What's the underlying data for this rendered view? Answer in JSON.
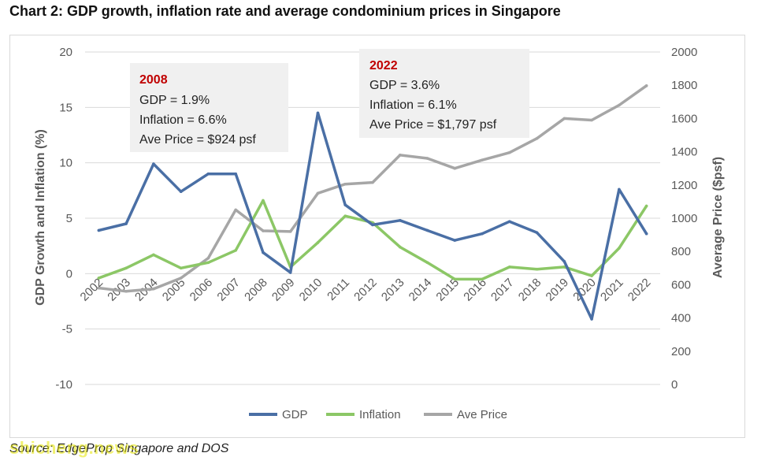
{
  "page": {
    "title": "Chart 2: GDP growth, inflation rate and average condominium prices in Singapore",
    "source": "Source: EdgeProp Singapore and DOS",
    "watermark": "shicheng.news"
  },
  "annotations": [
    {
      "year_label": "2008",
      "lines": [
        "GDP = 1.9%",
        "Inflation = 6.6%",
        "Ave Price = $924 psf"
      ]
    },
    {
      "year_label": "2022",
      "lines": [
        "GDP = 3.6%",
        "Inflation = 6.1%",
        "Ave Price = $1,797 psf"
      ]
    }
  ],
  "chart_data": {
    "type": "line",
    "title": "",
    "categories": [
      "2002",
      "2003",
      "2004",
      "2005",
      "2006",
      "2007",
      "2008",
      "2009",
      "2010",
      "2011",
      "2012",
      "2013",
      "2014",
      "2015",
      "2016",
      "2017",
      "2018",
      "2019",
      "2020",
      "2021",
      "2022"
    ],
    "ylabel": "GDP Growth and Inflation (%)",
    "y2label": "Average Price ($psf)",
    "ylim": [
      -10,
      20
    ],
    "y2lim": [
      0,
      2000
    ],
    "yticks": [
      "20",
      "15",
      "10",
      "5",
      "0",
      "-5",
      "-10"
    ],
    "y2ticks": [
      "2000",
      "1800",
      "1600",
      "1400",
      "1200",
      "1000",
      "800",
      "600",
      "400",
      "200",
      "0"
    ],
    "grid": true,
    "legend": "bottom",
    "series": [
      {
        "name": "GDP",
        "axis": "left",
        "color": "#4a6fa5",
        "values": [
          3.9,
          4.5,
          9.9,
          7.4,
          9.0,
          9.0,
          1.9,
          0.1,
          14.5,
          6.2,
          4.4,
          4.8,
          3.9,
          3.0,
          3.6,
          4.7,
          3.7,
          1.1,
          -4.1,
          7.6,
          3.6
        ]
      },
      {
        "name": "Inflation",
        "axis": "left",
        "color": "#8cc766",
        "values": [
          -0.4,
          0.5,
          1.7,
          0.5,
          1.0,
          2.1,
          6.6,
          0.6,
          2.8,
          5.2,
          4.6,
          2.4,
          1.0,
          -0.5,
          -0.5,
          0.6,
          0.4,
          0.6,
          -0.2,
          2.3,
          6.1
        ]
      },
      {
        "name": "Ave Price",
        "axis": "right",
        "color": "#a6a6a6",
        "values": [
          580,
          560,
          575,
          640,
          760,
          1050,
          924,
          920,
          1150,
          1205,
          1215,
          1380,
          1360,
          1300,
          1350,
          1395,
          1480,
          1600,
          1590,
          1680,
          1797
        ]
      }
    ]
  }
}
